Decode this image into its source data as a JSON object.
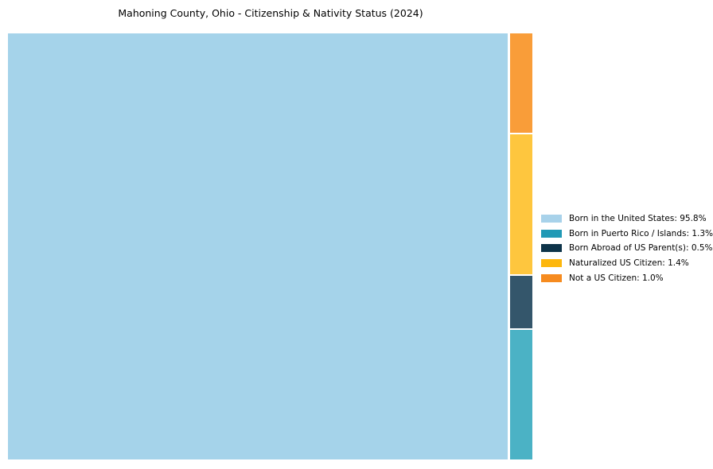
{
  "title": "Mahoning County, Ohio - Citizenship & Nativity Status (2024)",
  "chart_data": {
    "type": "treemap",
    "title": "Mahoning County, Ohio - Citizenship & Nativity Status (2024)",
    "categories": [
      "Born in the United States",
      "Born in Puerto Rico / Islands",
      "Born Abroad of US Parent(s)",
      "Naturalized US Citizen",
      "Not a US Citizen"
    ],
    "values": [
      95.8,
      1.3,
      0.5,
      1.4,
      1.0
    ],
    "unit": "%",
    "colors": {
      "chart": [
        "#A5D3EA",
        "#4BB2C5",
        "#34566B",
        "#FEC63E",
        "#F99D39"
      ],
      "legend": [
        "#A8D2EA",
        "#2199B5",
        "#0D3349",
        "#FDB70D",
        "#F68B1F"
      ]
    },
    "legend": {
      "position": "right",
      "frame": false,
      "entries": [
        {
          "label": "Born in the United States: 95.8%",
          "color": "#A8D2EA"
        },
        {
          "label": "Born in Puerto Rico / Islands: 1.3%",
          "color": "#2199B5"
        },
        {
          "label": "Born Abroad of US Parent(s): 0.5%",
          "color": "#0D3349"
        },
        {
          "label": "Naturalized US Citizen: 1.4%",
          "color": "#FDB70D"
        },
        {
          "label": "Not a US Citizen: 1.0%",
          "color": "#F68B1F"
        }
      ]
    },
    "layout_hint": "one large rect fills left 95.8% of plot area; narrow right column stacked top-to-bottom: Not a US Citizen, Naturalized US Citizen, Born Abroad of US Parent(s), Born in Puerto Rico / Islands; thin white gaps between rects; no axes"
  }
}
